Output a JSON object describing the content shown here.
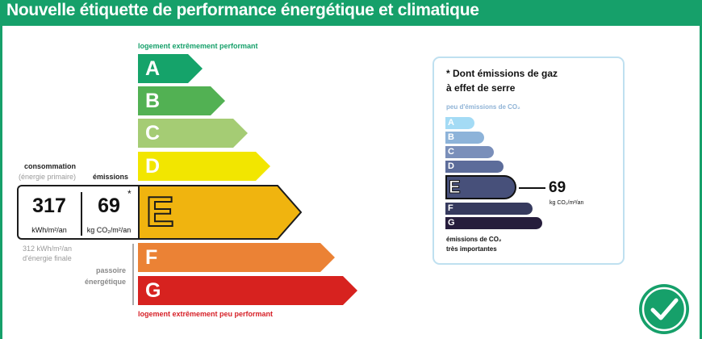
{
  "header": {
    "title": "Nouvelle étiquette de performance énergétique et climatique"
  },
  "energy_scale": {
    "top_caption": "logement extrêmement performant",
    "bottom_caption": "logement extrêmement peu performant",
    "classes": [
      {
        "letter": "A",
        "color": "#15a36a"
      },
      {
        "letter": "B",
        "color": "#52b153"
      },
      {
        "letter": "C",
        "color": "#a5cc74"
      },
      {
        "letter": "D",
        "color": "#f2e600"
      },
      {
        "letter": "E",
        "color": "#f0b40f"
      },
      {
        "letter": "F",
        "color": "#eb8235"
      },
      {
        "letter": "G",
        "color": "#d7221f"
      }
    ],
    "current_class": "E"
  },
  "consumption": {
    "label": "consommation",
    "sublabel": "(énergie primaire)",
    "value": "317",
    "unit": "kWh/m²/an",
    "final_energy_line1": "312 kWh/m²/an",
    "final_energy_line2": "d'énergie finale"
  },
  "emissions": {
    "label": "émissions",
    "value": "69",
    "unit": "kg CO₂/m²/an",
    "asterisk": "*"
  },
  "passoire": {
    "line1": "passoire",
    "line2": "énergétique"
  },
  "ges": {
    "title_line1": "* Dont émissions de gaz",
    "title_line2": "à effet de serre",
    "top_caption": "peu d'émissions de CO₂",
    "bottom_line1": "émissions de CO₂",
    "bottom_line2": "très importantes",
    "value": "69",
    "unit": "kg CO₂/m²/an",
    "current_class": "E",
    "classes": [
      {
        "letter": "A",
        "color": "#a4dbf5"
      },
      {
        "letter": "B",
        "color": "#8db3d9"
      },
      {
        "letter": "C",
        "color": "#7a8fba"
      },
      {
        "letter": "D",
        "color": "#5c6c9a"
      },
      {
        "letter": "E",
        "color": "#47507a"
      },
      {
        "letter": "F",
        "color": "#363a5e"
      },
      {
        "letter": "G",
        "color": "#261d3c"
      }
    ]
  },
  "status": {
    "icon": "check-icon",
    "color": "#16a06a"
  }
}
